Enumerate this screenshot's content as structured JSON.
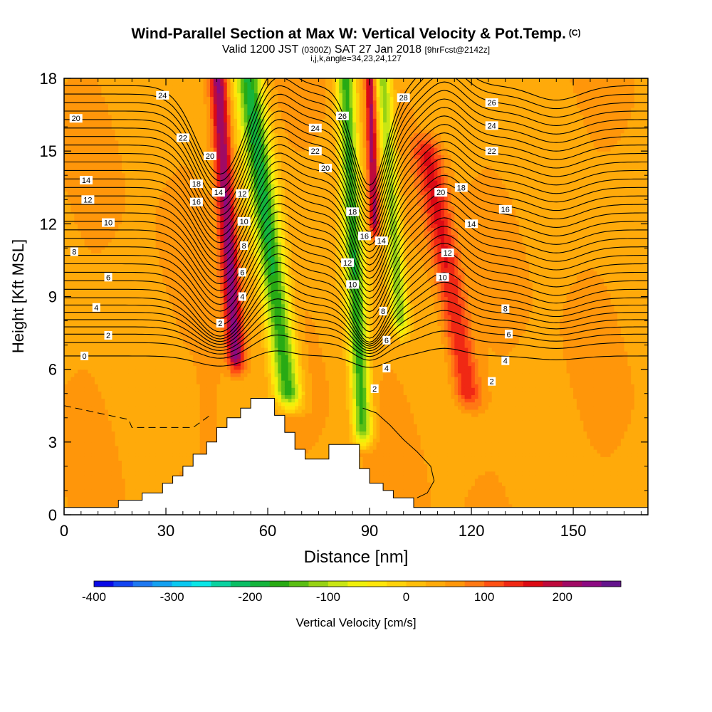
{
  "title": "Wind-Parallel Section at Max W: Vertical Velocity & Pot.Temp.",
  "copyright_mark": "(C)",
  "subtitle": {
    "valid": "Valid 1200 JST",
    "utc": "(0300Z)",
    "date": "SAT 27 Jan 2018",
    "forecast": "[9hrFcst@2142z]"
  },
  "params": "i,j,k,angle=34,23,24,127",
  "chart_data": {
    "type": "heatmap",
    "xlabel": "Distance [nm]",
    "ylabel": "Height [Kft MSL]",
    "xlim": [
      0,
      172
    ],
    "ylim": [
      0,
      18
    ],
    "x_ticks": [
      0,
      30,
      60,
      90,
      120,
      150
    ],
    "y_ticks": [
      0,
      3,
      6,
      9,
      12,
      15,
      18
    ],
    "colorbar": {
      "label": "Vertical Velocity [cm/s]",
      "range": [
        -400,
        275
      ],
      "ticks": [
        -400,
        -300,
        -200,
        -100,
        0,
        100,
        200
      ],
      "colors": [
        "#0a0ae6",
        "#1444f0",
        "#1e78f0",
        "#14a0f0",
        "#0ac8f0",
        "#0ae6e6",
        "#0ad2a0",
        "#0abe64",
        "#14b43c",
        "#28aa14",
        "#5abe14",
        "#96d214",
        "#c8e614",
        "#f0f00a",
        "#ffe60a",
        "#ffd20a",
        "#ffbe0a",
        "#ffaa0a",
        "#ff960a",
        "#ff7814",
        "#ff5014",
        "#f02814",
        "#dc0a14",
        "#be0a3c",
        "#a00a64",
        "#8c0a82",
        "#64148c"
      ]
    },
    "terrain_kft": [
      [
        0,
        0.3
      ],
      [
        16,
        0.3
      ],
      [
        16,
        0.6
      ],
      [
        23,
        0.6
      ],
      [
        23,
        0.9
      ],
      [
        29,
        0.9
      ],
      [
        29,
        1.3
      ],
      [
        32,
        1.3
      ],
      [
        32,
        1.6
      ],
      [
        35,
        1.6
      ],
      [
        35,
        2.0
      ],
      [
        38,
        2.0
      ],
      [
        38,
        2.5
      ],
      [
        42,
        2.5
      ],
      [
        42,
        3.0
      ],
      [
        45,
        3.0
      ],
      [
        45,
        3.6
      ],
      [
        48,
        3.6
      ],
      [
        48,
        4.0
      ],
      [
        52,
        4.0
      ],
      [
        52,
        4.4
      ],
      [
        55,
        4.4
      ],
      [
        55,
        4.8
      ],
      [
        62,
        4.8
      ],
      [
        62,
        4.1
      ],
      [
        65,
        4.1
      ],
      [
        65,
        3.4
      ],
      [
        68,
        3.4
      ],
      [
        68,
        2.7
      ],
      [
        71,
        2.7
      ],
      [
        71,
        2.3
      ],
      [
        78,
        2.3
      ],
      [
        78,
        2.9
      ],
      [
        87,
        2.9
      ],
      [
        87,
        1.9
      ],
      [
        90,
        1.9
      ],
      [
        90,
        1.3
      ],
      [
        94,
        1.3
      ],
      [
        94,
        1.0
      ],
      [
        97,
        1.0
      ],
      [
        97,
        0.7
      ],
      [
        103,
        0.7
      ],
      [
        103,
        0.3
      ],
      [
        172,
        0.3
      ]
    ],
    "w_features": [
      {
        "sign": "up",
        "value": 230,
        "center": [
          47,
          14.5
        ],
        "half_width": 2.5,
        "z_range": [
          6.5,
          18.5
        ],
        "tilt": -0.45
      },
      {
        "sign": "down",
        "value": -180,
        "center": [
          57,
          15
        ],
        "half_width": 4,
        "z_range": [
          5,
          18.5
        ],
        "tilt": -0.9
      },
      {
        "sign": "down",
        "value": -160,
        "center": [
          85,
          12
        ],
        "half_width": 2.8,
        "z_range": [
          3.5,
          18.5
        ],
        "tilt": -0.35
      },
      {
        "sign": "up",
        "value": 200,
        "center": [
          90.5,
          16.5
        ],
        "half_width": 1.4,
        "z_range": [
          12,
          18.5
        ],
        "tilt": -0.2
      },
      {
        "sign": "down",
        "value": -120,
        "center": [
          96,
          14
        ],
        "half_width": 2.5,
        "z_range": [
          8,
          18.5
        ],
        "tilt": -0.5
      },
      {
        "sign": "up",
        "value": 150,
        "center": [
          113,
          10
        ],
        "half_width": 4,
        "z_range": [
          5,
          15
        ],
        "tilt": -1.2
      },
      {
        "sign": "up",
        "value": 60,
        "center": [
          43,
          4
        ],
        "half_width": 3,
        "z_range": [
          1.5,
          7
        ],
        "tilt": 0
      }
    ],
    "theta_contours": [
      {
        "label": "0",
        "base": 6.55,
        "dashed": false
      },
      {
        "label": "2",
        "base": 7.1,
        "dashed": false
      },
      {
        "label": "",
        "base": 7.45,
        "dashed": false
      },
      {
        "label": "4",
        "base": 7.75,
        "dashed": false
      },
      {
        "label": "",
        "base": 8.05,
        "dashed": false
      },
      {
        "label": "6",
        "base": 8.35,
        "dashed": false
      },
      {
        "label": "",
        "base": 8.65,
        "dashed": false
      },
      {
        "label": "8",
        "base": 8.95,
        "dashed": false
      },
      {
        "label": "",
        "base": 9.3,
        "dashed": false
      },
      {
        "label": "10",
        "base": 9.65,
        "dashed": false
      },
      {
        "label": "",
        "base": 10.0,
        "dashed": false
      },
      {
        "label": "12",
        "base": 10.35,
        "dashed": false
      },
      {
        "label": "",
        "base": 10.7,
        "dashed": false
      },
      {
        "label": "14",
        "base": 11.05,
        "dashed": false
      },
      {
        "label": "",
        "base": 11.4,
        "dashed": false
      },
      {
        "label": "16",
        "base": 11.75,
        "dashed": false
      },
      {
        "label": "",
        "base": 12.1,
        "dashed": false
      },
      {
        "label": "18",
        "base": 12.45,
        "dashed": false
      },
      {
        "label": "",
        "base": 12.8,
        "dashed": false
      },
      {
        "label": "20",
        "base": 13.15,
        "dashed": false
      },
      {
        "label": "",
        "base": 13.5,
        "dashed": false
      },
      {
        "label": "22",
        "base": 13.85,
        "dashed": false
      },
      {
        "label": "",
        "base": 14.2,
        "dashed": false
      },
      {
        "label": "24",
        "base": 14.55,
        "dashed": false
      },
      {
        "label": "",
        "base": 14.9,
        "dashed": false
      },
      {
        "label": "26",
        "base": 15.25,
        "dashed": false
      },
      {
        "label": "",
        "base": 15.6,
        "dashed": false
      },
      {
        "label": "28",
        "base": 15.95,
        "dashed": false
      },
      {
        "label": "",
        "base": 16.3,
        "dashed": false
      },
      {
        "label": "",
        "base": 16.65,
        "dashed": false
      },
      {
        "label": "",
        "base": 17.0,
        "dashed": false
      },
      {
        "label": "",
        "base": 17.35,
        "dashed": false
      },
      {
        "label": "",
        "base": 17.7,
        "dashed": false
      }
    ],
    "contour_labels": [
      {
        "text": "0",
        "x": 6,
        "y": 6.55
      },
      {
        "text": "2",
        "x": 13,
        "y": 7.4
      },
      {
        "text": "4",
        "x": 9.5,
        "y": 8.55
      },
      {
        "text": "6",
        "x": 13,
        "y": 9.8
      },
      {
        "text": "8",
        "x": 3,
        "y": 10.85
      },
      {
        "text": "10",
        "x": 13,
        "y": 12.05
      },
      {
        "text": "12",
        "x": 7,
        "y": 13.0
      },
      {
        "text": "14",
        "x": 6.5,
        "y": 13.8
      },
      {
        "text": "20",
        "x": 3.5,
        "y": 16.35
      },
      {
        "text": "24",
        "x": 29,
        "y": 17.3
      },
      {
        "text": "22",
        "x": 35,
        "y": 15.55
      },
      {
        "text": "20",
        "x": 43,
        "y": 14.8
      },
      {
        "text": "18",
        "x": 39,
        "y": 13.65
      },
      {
        "text": "16",
        "x": 39,
        "y": 12.9
      },
      {
        "text": "14",
        "x": 45.5,
        "y": 13.3
      },
      {
        "text": "2",
        "x": 46,
        "y": 7.9
      },
      {
        "text": "12",
        "x": 52.5,
        "y": 13.25
      },
      {
        "text": "10",
        "x": 53,
        "y": 12.1
      },
      {
        "text": "8",
        "x": 53,
        "y": 11.1
      },
      {
        "text": "6",
        "x": 52.5,
        "y": 10.0
      },
      {
        "text": "4",
        "x": 52.5,
        "y": 9.0
      },
      {
        "text": "24",
        "x": 74,
        "y": 15.95
      },
      {
        "text": "22",
        "x": 74,
        "y": 15.0
      },
      {
        "text": "20",
        "x": 77,
        "y": 14.3
      },
      {
        "text": "26",
        "x": 82,
        "y": 16.45
      },
      {
        "text": "18",
        "x": 85,
        "y": 12.5
      },
      {
        "text": "16",
        "x": 88.5,
        "y": 11.5
      },
      {
        "text": "14",
        "x": 93.5,
        "y": 11.3
      },
      {
        "text": "12",
        "x": 83.5,
        "y": 10.4
      },
      {
        "text": "10",
        "x": 85,
        "y": 9.5
      },
      {
        "text": "8",
        "x": 94,
        "y": 8.4
      },
      {
        "text": "6",
        "x": 95,
        "y": 7.2
      },
      {
        "text": "4",
        "x": 95,
        "y": 6.05
      },
      {
        "text": "2",
        "x": 91.5,
        "y": 5.2
      },
      {
        "text": "28",
        "x": 100,
        "y": 17.2
      },
      {
        "text": "20",
        "x": 111,
        "y": 13.3
      },
      {
        "text": "18",
        "x": 117,
        "y": 13.5
      },
      {
        "text": "26",
        "x": 126,
        "y": 17.0
      },
      {
        "text": "24",
        "x": 126,
        "y": 16.05
      },
      {
        "text": "22",
        "x": 126,
        "y": 15.0
      },
      {
        "text": "16",
        "x": 130,
        "y": 12.6
      },
      {
        "text": "14",
        "x": 120,
        "y": 12.0
      },
      {
        "text": "12",
        "x": 113,
        "y": 10.8
      },
      {
        "text": "10",
        "x": 111.5,
        "y": 9.8
      },
      {
        "text": "8",
        "x": 130,
        "y": 8.5
      },
      {
        "text": "6",
        "x": 131,
        "y": 7.45
      },
      {
        "text": "4",
        "x": 130,
        "y": 6.35
      },
      {
        "text": "2",
        "x": 126,
        "y": 5.5
      }
    ]
  }
}
